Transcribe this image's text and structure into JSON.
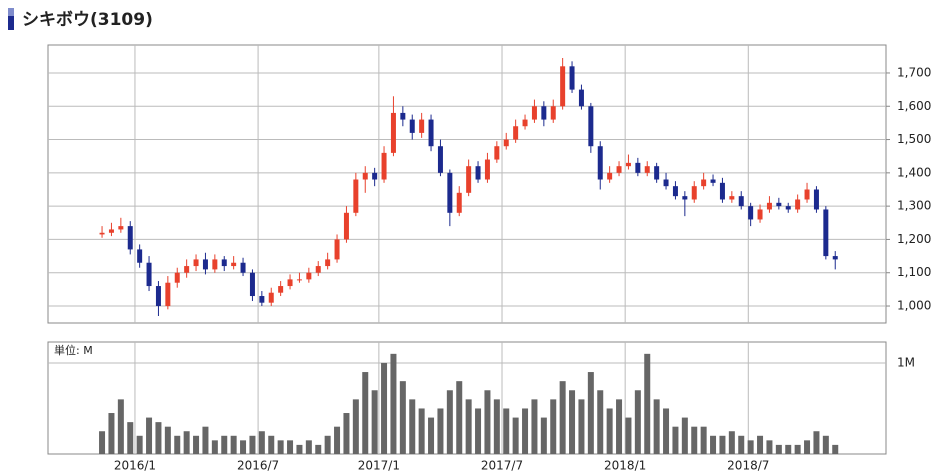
{
  "chart_data": {
    "type": "candlestick",
    "title": "シキボウ(3109)",
    "volume_unit_label": "単位: M",
    "up_color": "#e8412c",
    "down_color": "#1c2a8e",
    "volume_color": "#666666",
    "grid": true,
    "xlim": [
      0,
      178.3
    ],
    "xticks": [
      {
        "value": 18.5,
        "label": "2016/1"
      },
      {
        "value": 44.7,
        "label": "2016/7"
      },
      {
        "value": 70.4,
        "label": "2017/1"
      },
      {
        "value": 96.6,
        "label": "2017/7"
      },
      {
        "value": 122.8,
        "label": "2018/1"
      },
      {
        "value": 149,
        "label": "2018/7"
      }
    ],
    "ylim": [
      949,
      1784
    ],
    "yticks": [
      {
        "value": 1000,
        "label": "1,000"
      },
      {
        "value": 1100,
        "label": "1,100"
      },
      {
        "value": 1200,
        "label": "1,200"
      },
      {
        "value": 1300,
        "label": "1,300"
      },
      {
        "value": 1400,
        "label": "1,400"
      },
      {
        "value": 1500,
        "label": "1,500"
      },
      {
        "value": 1600,
        "label": "1,600"
      },
      {
        "value": 1700,
        "label": "1,700"
      }
    ],
    "volume_ylim": [
      0,
      1.23
    ],
    "volume_yticks": [
      {
        "value": 1,
        "label": "1M"
      }
    ],
    "x": [
      11.5,
      13.5,
      15.5,
      17.5,
      19.5,
      21.5,
      23.5,
      25.5,
      27.5,
      29.5,
      31.5,
      33.5,
      35.5,
      37.5,
      39.5,
      41.5,
      43.5,
      45.5,
      47.5,
      49.5,
      51.5,
      53.5,
      55.5,
      57.5,
      59.5,
      61.5,
      63.5,
      65.5,
      67.5,
      69.5,
      71.5,
      73.5,
      75.5,
      77.5,
      79.5,
      81.5,
      83.5,
      85.5,
      87.5,
      89.5,
      91.5,
      93.5,
      95.5,
      97.5,
      99.5,
      101.5,
      103.5,
      105.5,
      107.5,
      109.5,
      111.5,
      113.5,
      115.5,
      117.5,
      119.5,
      121.5,
      123.5,
      125.5,
      127.5,
      129.5,
      131.5,
      133.5,
      135.5,
      137.5,
      139.5,
      141.5,
      143.5,
      145.5,
      147.5,
      149.5,
      151.5,
      153.5,
      155.5,
      157.5,
      159.5,
      161.5,
      163.5,
      165.5,
      167.5
    ],
    "open": [
      1215,
      1220,
      1230,
      1240,
      1170,
      1130,
      1060,
      1000,
      1070,
      1100,
      1120,
      1140,
      1110,
      1140,
      1120,
      1130,
      1100,
      1030,
      1010,
      1040,
      1060,
      1080,
      1080,
      1100,
      1120,
      1140,
      1200,
      1280,
      1380,
      1400,
      1380,
      1460,
      1580,
      1560,
      1520,
      1560,
      1480,
      1400,
      1280,
      1340,
      1420,
      1380,
      1440,
      1480,
      1500,
      1540,
      1560,
      1600,
      1560,
      1600,
      1720,
      1650,
      1600,
      1480,
      1380,
      1400,
      1420,
      1430,
      1400,
      1420,
      1380,
      1360,
      1330,
      1320,
      1360,
      1380,
      1370,
      1320,
      1330,
      1300,
      1260,
      1290,
      1310,
      1300,
      1290,
      1320,
      1350,
      1290,
      1150
    ],
    "high": [
      1240,
      1250,
      1265,
      1255,
      1185,
      1150,
      1075,
      1090,
      1115,
      1140,
      1155,
      1160,
      1155,
      1150,
      1150,
      1145,
      1110,
      1045,
      1055,
      1075,
      1095,
      1100,
      1115,
      1135,
      1160,
      1215,
      1300,
      1400,
      1420,
      1415,
      1480,
      1630,
      1600,
      1575,
      1580,
      1575,
      1500,
      1410,
      1360,
      1440,
      1435,
      1460,
      1495,
      1520,
      1560,
      1575,
      1620,
      1615,
      1620,
      1745,
      1735,
      1665,
      1610,
      1495,
      1420,
      1435,
      1455,
      1445,
      1435,
      1430,
      1400,
      1375,
      1345,
      1375,
      1400,
      1395,
      1385,
      1345,
      1345,
      1310,
      1305,
      1330,
      1325,
      1310,
      1335,
      1370,
      1360,
      1300,
      1165
    ],
    "low": [
      1205,
      1210,
      1220,
      1155,
      1115,
      1045,
      970,
      990,
      1055,
      1085,
      1105,
      1095,
      1100,
      1105,
      1110,
      1090,
      1015,
      1000,
      1000,
      1030,
      1050,
      1070,
      1070,
      1090,
      1110,
      1130,
      1190,
      1270,
      1340,
      1360,
      1370,
      1450,
      1540,
      1500,
      1505,
      1465,
      1390,
      1240,
      1270,
      1330,
      1370,
      1370,
      1430,
      1470,
      1490,
      1530,
      1550,
      1540,
      1550,
      1590,
      1640,
      1590,
      1460,
      1350,
      1370,
      1390,
      1410,
      1390,
      1390,
      1370,
      1350,
      1320,
      1270,
      1310,
      1350,
      1360,
      1310,
      1310,
      1290,
      1240,
      1250,
      1280,
      1290,
      1280,
      1280,
      1310,
      1280,
      1140,
      1110
    ],
    "close": [
      1220,
      1230,
      1240,
      1170,
      1130,
      1060,
      1000,
      1070,
      1100,
      1120,
      1140,
      1110,
      1140,
      1120,
      1130,
      1100,
      1030,
      1010,
      1040,
      1060,
      1080,
      1080,
      1100,
      1120,
      1140,
      1200,
      1280,
      1380,
      1400,
      1380,
      1460,
      1580,
      1560,
      1520,
      1560,
      1480,
      1400,
      1280,
      1340,
      1420,
      1380,
      1440,
      1480,
      1500,
      1540,
      1560,
      1600,
      1560,
      1600,
      1720,
      1650,
      1600,
      1480,
      1380,
      1400,
      1420,
      1430,
      1400,
      1420,
      1380,
      1360,
      1330,
      1320,
      1360,
      1380,
      1370,
      1320,
      1330,
      1300,
      1260,
      1290,
      1310,
      1300,
      1290,
      1320,
      1350,
      1290,
      1150,
      1140
    ],
    "volume": [
      0.25,
      0.45,
      0.6,
      0.35,
      0.2,
      0.4,
      0.35,
      0.3,
      0.2,
      0.25,
      0.2,
      0.3,
      0.15,
      0.2,
      0.2,
      0.15,
      0.2,
      0.25,
      0.2,
      0.15,
      0.15,
      0.1,
      0.15,
      0.1,
      0.2,
      0.3,
      0.45,
      0.6,
      0.9,
      0.7,
      1.0,
      1.1,
      0.8,
      0.6,
      0.5,
      0.4,
      0.5,
      0.7,
      0.8,
      0.6,
      0.5,
      0.7,
      0.6,
      0.5,
      0.4,
      0.5,
      0.6,
      0.4,
      0.6,
      0.8,
      0.7,
      0.6,
      0.9,
      0.7,
      0.5,
      0.6,
      0.4,
      0.7,
      1.1,
      0.6,
      0.5,
      0.3,
      0.4,
      0.3,
      0.3,
      0.2,
      0.2,
      0.25,
      0.2,
      0.15,
      0.2,
      0.15,
      0.1,
      0.1,
      0.1,
      0.15,
      0.25,
      0.2,
      0.1
    ]
  }
}
